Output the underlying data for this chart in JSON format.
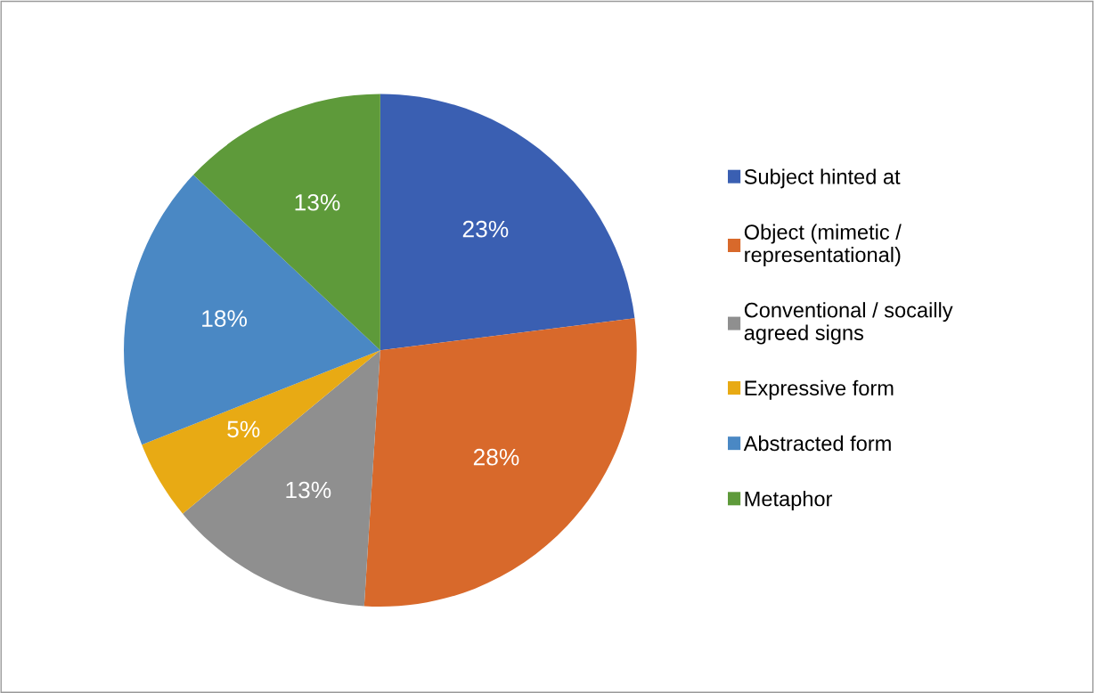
{
  "chart_data": {
    "type": "pie",
    "categories": [
      "Subject hinted at",
      "Object (mimetic /\nrepresentational)",
      "Conventional / socailly\nagreed signs",
      "Expressive form",
      "Abstracted form",
      "Metaphor"
    ],
    "values": [
      23,
      28,
      13,
      5,
      18,
      13
    ],
    "colors": [
      "#3a5fb2",
      "#d8692b",
      "#8f8f8f",
      "#e8aa14",
      "#4a88c4",
      "#5e9a3a"
    ],
    "value_labels": [
      "23%",
      "28%",
      "13%",
      "5%",
      "18%",
      "13%"
    ],
    "legend": "right"
  }
}
